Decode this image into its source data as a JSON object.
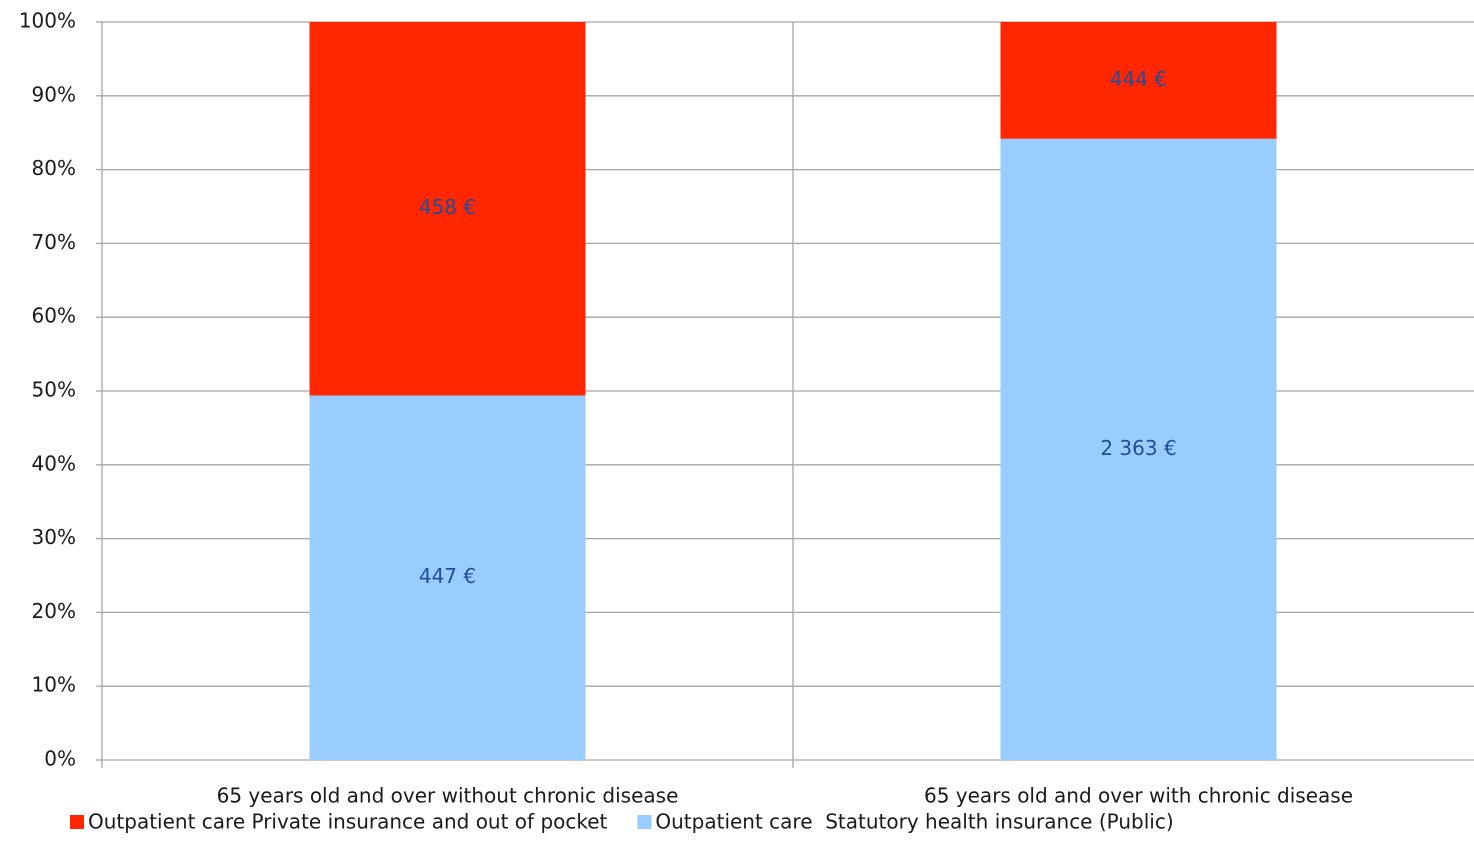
{
  "chart_data": {
    "type": "bar",
    "stacking": "percent",
    "categories": [
      "65 years old and over without chronic disease",
      "65 years old and over with chronic disease"
    ],
    "series": [
      {
        "name": "Outpatient care Private insurance and out of pocket",
        "color": "#ff2600",
        "values": [
          458,
          444
        ],
        "value_labels": [
          "458 €",
          "444 €"
        ]
      },
      {
        "name": "Outpatient care  Statutory health insurance (Public)",
        "color": "#99ccff",
        "values": [
          447,
          2363
        ],
        "value_labels": [
          "447 €",
          "2 363 €"
        ]
      }
    ],
    "ylim": [
      0,
      100
    ],
    "yticks": [
      {
        "value": 0,
        "label": "0%"
      },
      {
        "value": 10,
        "label": "10%"
      },
      {
        "value": 20,
        "label": "20%"
      },
      {
        "value": 30,
        "label": "30%"
      },
      {
        "value": 40,
        "label": "40%"
      },
      {
        "value": 50,
        "label": "50%"
      },
      {
        "value": 60,
        "label": "60%"
      },
      {
        "value": 70,
        "label": "70%"
      },
      {
        "value": 80,
        "label": "80%"
      },
      {
        "value": 90,
        "label": "90%"
      },
      {
        "value": 100,
        "label": "100%"
      }
    ],
    "grid": true,
    "legend": "bottom",
    "label_color": "#1f4e9a"
  }
}
